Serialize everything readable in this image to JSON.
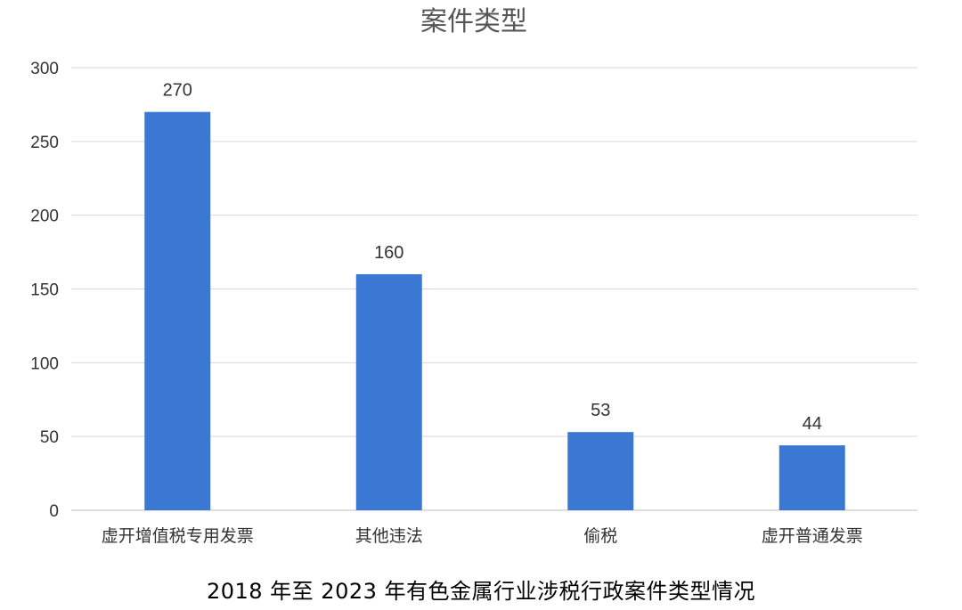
{
  "chart_data": {
    "type": "bar",
    "title": "案件类型",
    "categories": [
      "虚开增值税专用发票",
      "其他违法",
      "偷税",
      "虚开普通发票"
    ],
    "values": [
      270,
      160,
      53,
      44
    ],
    "ylim": [
      0,
      300
    ],
    "yticks": [
      0,
      50,
      100,
      150,
      200,
      250,
      300
    ],
    "grid": true,
    "legend": "none",
    "bar_color": "#3A78D4",
    "grid_color": "#D9D9D9"
  },
  "caption": "2018 年至 2023 年有色金属行业涉税行政案件类型情况"
}
